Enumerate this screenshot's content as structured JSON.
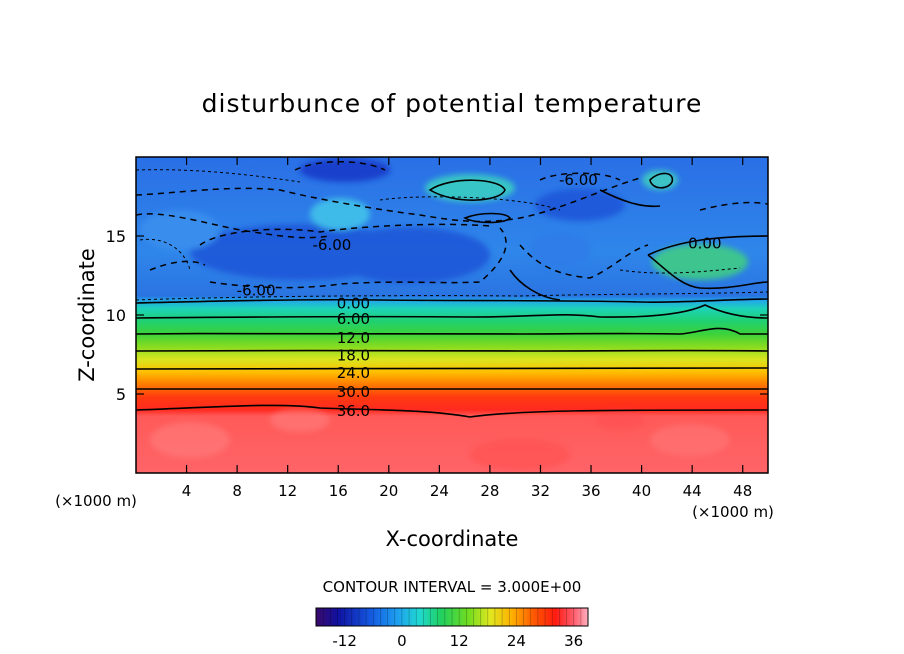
{
  "chart_data": {
    "type": "heatmap",
    "title": "disturbunce of potential temperature",
    "xlabel": "X-coordinate",
    "ylabel": "Z-coordinate",
    "x_unit": "(×1000 m)",
    "z_unit": "(×1000 m)",
    "xlim": [
      0,
      50
    ],
    "ylim": [
      0,
      20
    ],
    "x_ticks": [
      "4",
      "8",
      "12",
      "16",
      "20",
      "24",
      "28",
      "32",
      "36",
      "40",
      "44",
      "48"
    ],
    "y_ticks": [
      "5",
      "10",
      "15"
    ],
    "contour_interval_text": "CONTOUR INTERVAL = 3.000E+00",
    "contour_interval": 3.0,
    "contour_labels": [
      {
        "text": "-6.00",
        "x": 15.5,
        "z": 14.5
      },
      {
        "text": "-6.00",
        "x": 35.0,
        "z": 18.6
      },
      {
        "text": "-6.00",
        "x": 9.5,
        "z": 11.6
      },
      {
        "text": "0.00",
        "x": 45.0,
        "z": 14.6
      },
      {
        "text": "0.00",
        "x": 17.2,
        "z": 10.8
      },
      {
        "text": "6.00",
        "x": 17.2,
        "z": 9.8
      },
      {
        "text": "12.0",
        "x": 17.2,
        "z": 8.6
      },
      {
        "text": "18.0",
        "x": 17.2,
        "z": 7.5
      },
      {
        "text": "24.0",
        "x": 17.2,
        "z": 6.4
      },
      {
        "text": "30.0",
        "x": 17.2,
        "z": 5.2
      },
      {
        "text": "36.0",
        "x": 17.2,
        "z": 4.0
      }
    ],
    "colorbar": {
      "range": [
        -18,
        39
      ],
      "ticks": [
        "-12",
        "0",
        "12",
        "24",
        "36"
      ]
    }
  },
  "colors": {
    "bg": "#ffffff",
    "line": "#000000"
  }
}
